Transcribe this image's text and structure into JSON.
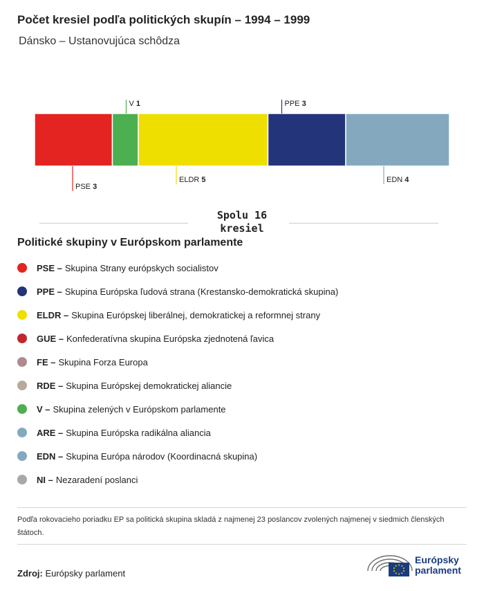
{
  "header": {
    "title": "Počet kresiel podľa politických skupín – 1994 – 1999",
    "subtitle": "Dánsko – Ustanovujúca schôdza"
  },
  "chart_data": {
    "type": "bar",
    "orientation": "horizontal-stacked",
    "categories": [
      "PSE",
      "V",
      "ELDR",
      "PPE",
      "EDN"
    ],
    "values": [
      3,
      1,
      5,
      3,
      4
    ],
    "colors": [
      "#e32421",
      "#4caf50",
      "#eedf00",
      "#23347a",
      "#84a9bf"
    ],
    "label_positions": [
      "below",
      "above",
      "below",
      "above",
      "below"
    ],
    "total": 16
  },
  "total_label": {
    "line1": "Spolu 16",
    "line2": "kresiel"
  },
  "legend": {
    "title": "Politické skupiny v Európskom parlamente",
    "items": [
      {
        "abbr": "PSE –",
        "name": "Skupina Strany európskych socialistov",
        "color": "#e32421"
      },
      {
        "abbr": "PPE –",
        "name": "Skupina Európska ľudová strana (Krestansko-demokratická skupina)",
        "color": "#23347a"
      },
      {
        "abbr": "ELDR –",
        "name": "Skupina Európskej liberálnej, demokratickej a reformnej strany",
        "color": "#eedf00"
      },
      {
        "abbr": "GUE –",
        "name": "Konfederatívna skupina Európska zjednotená ľavica",
        "color": "#c0262c"
      },
      {
        "abbr": "FE –",
        "name": "Skupina Forza Europa",
        "color": "#b08a8e"
      },
      {
        "abbr": "RDE –",
        "name": "Skupina Európskej demokratickej aliancie",
        "color": "#b7aa9c"
      },
      {
        "abbr": "V –",
        "name": "Skupina zelených v Európskom parlamente",
        "color": "#4caf50"
      },
      {
        "abbr": "ARE –",
        "name": "Skupina Európska radikálna aliancia",
        "color": "#84a9bf"
      },
      {
        "abbr": "EDN –",
        "name": "Skupina Európa národov (Koordinacná skupina)",
        "color": "#84a9bf"
      },
      {
        "abbr": "NI –",
        "name": "Nezaradení poslanci",
        "color": "#a8a8a8"
      }
    ]
  },
  "note": "Podľa rokovacieho poriadku EP sa politická skupina skladá z najmenej 23 poslancov zvolených najmenej v siedmich členských štátoch.",
  "source": {
    "label": "Zdroj:",
    "value": "Európsky parlament"
  },
  "logo": {
    "line1": "Európsky",
    "line2": "parlament"
  }
}
